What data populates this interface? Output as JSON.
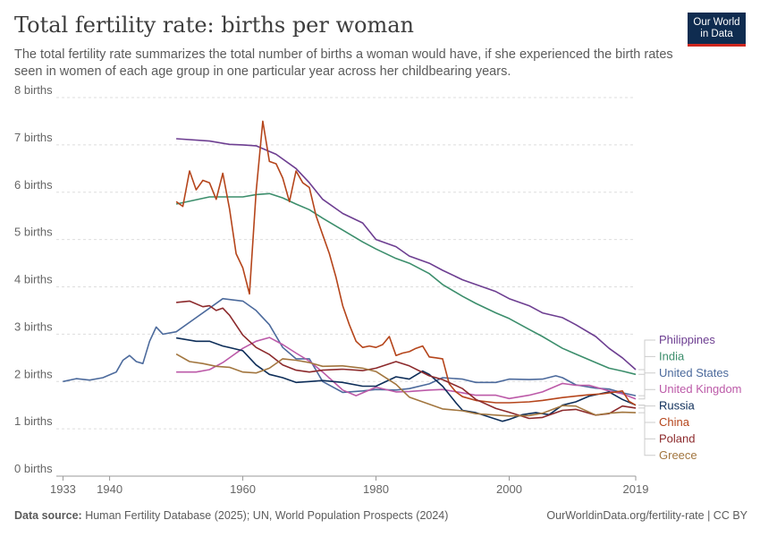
{
  "header": {
    "title": "Total fertility rate: births per woman",
    "subtitle": "The total fertility rate summarizes the total number of births a woman would have, if she experienced the birth rates seen in women of each age group in one particular year across her childbearing years.",
    "logo_line1": "Our World",
    "logo_line2": "in Data"
  },
  "footer": {
    "source_label": "Data source:",
    "source_text": " Human Fertility Database (2025); UN, World Population Prospects (2024)",
    "url": "OurWorldinData.org/fertility-rate | CC BY"
  },
  "colors": {
    "logo_bg": "#0f2c50",
    "logo_accent": "#ce261e"
  },
  "chart_data": {
    "type": "line",
    "title": "Total fertility rate: births per woman",
    "xlim": [
      1932,
      2019
    ],
    "ylim": [
      0,
      8
    ],
    "x_ticks": [
      1933,
      1940,
      1960,
      1980,
      2000,
      2019
    ],
    "y_ticks": [
      {
        "value": 0,
        "label": "0 births"
      },
      {
        "value": 1,
        "label": "1 births"
      },
      {
        "value": 2,
        "label": "2 births"
      },
      {
        "value": 3,
        "label": "3 births"
      },
      {
        "value": 4,
        "label": "4 births"
      },
      {
        "value": 5,
        "label": "5 births"
      },
      {
        "value": 6,
        "label": "6 births"
      },
      {
        "value": 7,
        "label": "7 births"
      },
      {
        "value": 8,
        "label": "8 births"
      }
    ],
    "grid": "horizontal dashed",
    "legend_placement": "right",
    "series": [
      {
        "name": "Philippines",
        "color": "#6d3e91",
        "x": [
          1950,
          1955,
          1958,
          1960,
          1962,
          1965,
          1968,
          1970,
          1972,
          1975,
          1978,
          1980,
          1983,
          1985,
          1988,
          1990,
          1993,
          1995,
          1998,
          2000,
          2003,
          2005,
          2008,
          2010,
          2013,
          2015,
          2017,
          2019
        ],
        "y": [
          7.13,
          7.08,
          7.01,
          7.0,
          6.98,
          6.8,
          6.5,
          6.2,
          5.85,
          5.55,
          5.35,
          5.0,
          4.85,
          4.65,
          4.5,
          4.35,
          4.15,
          4.05,
          3.9,
          3.75,
          3.6,
          3.45,
          3.35,
          3.2,
          2.95,
          2.7,
          2.5,
          2.25
        ]
      },
      {
        "name": "India",
        "color": "#3c8e6c",
        "x": [
          1950,
          1955,
          1960,
          1962,
          1964,
          1966,
          1968,
          1970,
          1972,
          1975,
          1978,
          1980,
          1983,
          1985,
          1988,
          1990,
          1993,
          1995,
          1998,
          2000,
          2003,
          2005,
          2008,
          2010,
          2013,
          2015,
          2017,
          2019
        ],
        "y": [
          5.75,
          5.9,
          5.9,
          5.95,
          5.97,
          5.88,
          5.75,
          5.63,
          5.45,
          5.2,
          4.95,
          4.8,
          4.6,
          4.5,
          4.28,
          4.05,
          3.8,
          3.65,
          3.45,
          3.33,
          3.1,
          2.95,
          2.7,
          2.58,
          2.4,
          2.28,
          2.22,
          2.15
        ]
      },
      {
        "name": "United States",
        "color": "#4c6a9c",
        "x": [
          1933,
          1935,
          1937,
          1939,
          1941,
          1942,
          1943,
          1944,
          1945,
          1946,
          1947,
          1948,
          1950,
          1953,
          1955,
          1957,
          1960,
          1962,
          1964,
          1966,
          1968,
          1970,
          1972,
          1975,
          1978,
          1980,
          1983,
          1985,
          1988,
          1990,
          1993,
          1995,
          1998,
          2000,
          2003,
          2005,
          2007,
          2008,
          2010,
          2013,
          2015,
          2017,
          2019
        ],
        "y": [
          2.0,
          2.06,
          2.03,
          2.08,
          2.2,
          2.45,
          2.55,
          2.42,
          2.38,
          2.85,
          3.15,
          3.0,
          3.05,
          3.35,
          3.55,
          3.75,
          3.7,
          3.5,
          3.2,
          2.72,
          2.48,
          2.48,
          2.0,
          1.77,
          1.8,
          1.83,
          1.82,
          1.85,
          1.95,
          2.08,
          2.05,
          1.98,
          1.98,
          2.05,
          2.04,
          2.05,
          2.12,
          2.08,
          1.93,
          1.86,
          1.84,
          1.76,
          1.7
        ]
      },
      {
        "name": "United Kingdom",
        "color": "#bc5aa8",
        "x": [
          1950,
          1953,
          1955,
          1957,
          1960,
          1962,
          1964,
          1966,
          1968,
          1970,
          1972,
          1975,
          1977,
          1980,
          1983,
          1985,
          1988,
          1990,
          1993,
          1995,
          1998,
          2000,
          2003,
          2005,
          2008,
          2010,
          2012,
          2015,
          2017,
          2019
        ],
        "y": [
          2.2,
          2.2,
          2.25,
          2.4,
          2.7,
          2.85,
          2.93,
          2.78,
          2.6,
          2.43,
          2.2,
          1.82,
          1.7,
          1.88,
          1.78,
          1.79,
          1.82,
          1.83,
          1.76,
          1.71,
          1.71,
          1.64,
          1.71,
          1.78,
          1.96,
          1.92,
          1.92,
          1.8,
          1.74,
          1.63
        ]
      },
      {
        "name": "Russia",
        "color": "#0e2e59",
        "x": [
          1950,
          1953,
          1955,
          1957,
          1960,
          1962,
          1964,
          1966,
          1968,
          1970,
          1972,
          1975,
          1978,
          1980,
          1983,
          1985,
          1987,
          1988,
          1990,
          1992,
          1993,
          1995,
          1997,
          1999,
          2000,
          2002,
          2004,
          2006,
          2008,
          2010,
          2012,
          2015,
          2017,
          2019
        ],
        "y": [
          2.92,
          2.85,
          2.85,
          2.75,
          2.65,
          2.35,
          2.15,
          2.08,
          1.98,
          2.0,
          2.02,
          1.98,
          1.9,
          1.9,
          2.1,
          2.05,
          2.22,
          2.15,
          1.9,
          1.55,
          1.39,
          1.34,
          1.25,
          1.16,
          1.2,
          1.3,
          1.34,
          1.3,
          1.5,
          1.57,
          1.69,
          1.78,
          1.62,
          1.5
        ]
      },
      {
        "name": "China",
        "color": "#b5451b",
        "x": [
          1950,
          1951,
          1952,
          1953,
          1954,
          1955,
          1956,
          1957,
          1958,
          1959,
          1960,
          1961,
          1962,
          1963,
          1964,
          1965,
          1966,
          1967,
          1968,
          1969,
          1970,
          1971,
          1972,
          1973,
          1974,
          1975,
          1976,
          1977,
          1978,
          1979,
          1980,
          1981,
          1982,
          1983,
          1984,
          1985,
          1986,
          1987,
          1988,
          1989,
          1990,
          1991,
          1992,
          1993,
          1995,
          1998,
          2000,
          2003,
          2005,
          2008,
          2010,
          2012,
          2014,
          2016,
          2017,
          2018,
          2019
        ],
        "y": [
          5.8,
          5.7,
          6.45,
          6.05,
          6.25,
          6.2,
          5.85,
          6.4,
          5.65,
          4.7,
          4.4,
          3.85,
          6.0,
          7.5,
          6.65,
          6.6,
          6.3,
          5.8,
          6.45,
          6.2,
          6.1,
          5.5,
          5.1,
          4.7,
          4.2,
          3.6,
          3.2,
          2.85,
          2.72,
          2.75,
          2.72,
          2.78,
          2.95,
          2.55,
          2.6,
          2.63,
          2.7,
          2.75,
          2.52,
          2.5,
          2.48,
          1.95,
          1.78,
          1.68,
          1.6,
          1.55,
          1.55,
          1.57,
          1.6,
          1.66,
          1.69,
          1.72,
          1.74,
          1.78,
          1.8,
          1.58,
          1.5
        ]
      },
      {
        "name": "Poland",
        "color": "#8c2a2c",
        "x": [
          1950,
          1952,
          1954,
          1955,
          1956,
          1957,
          1958,
          1960,
          1962,
          1964,
          1966,
          1968,
          1970,
          1972,
          1975,
          1978,
          1980,
          1983,
          1985,
          1988,
          1990,
          1993,
          1995,
          1998,
          2000,
          2003,
          2005,
          2008,
          2010,
          2013,
          2015,
          2017,
          2019
        ],
        "y": [
          3.67,
          3.7,
          3.58,
          3.6,
          3.5,
          3.55,
          3.4,
          2.98,
          2.72,
          2.57,
          2.35,
          2.24,
          2.2,
          2.24,
          2.26,
          2.23,
          2.28,
          2.42,
          2.33,
          2.12,
          2.04,
          1.85,
          1.62,
          1.43,
          1.35,
          1.22,
          1.24,
          1.39,
          1.41,
          1.29,
          1.32,
          1.48,
          1.44
        ]
      },
      {
        "name": "Greece",
        "color": "#a2763f",
        "x": [
          1950,
          1952,
          1954,
          1956,
          1958,
          1960,
          1962,
          1964,
          1966,
          1968,
          1970,
          1972,
          1975,
          1978,
          1980,
          1983,
          1985,
          1988,
          1990,
          1993,
          1995,
          1998,
          2000,
          2003,
          2005,
          2008,
          2010,
          2013,
          2015,
          2017,
          2019
        ],
        "y": [
          2.58,
          2.42,
          2.38,
          2.32,
          2.3,
          2.2,
          2.18,
          2.28,
          2.48,
          2.45,
          2.4,
          2.32,
          2.33,
          2.28,
          2.21,
          1.94,
          1.67,
          1.52,
          1.42,
          1.38,
          1.32,
          1.29,
          1.27,
          1.28,
          1.33,
          1.49,
          1.48,
          1.29,
          1.33,
          1.35,
          1.34
        ]
      }
    ]
  }
}
